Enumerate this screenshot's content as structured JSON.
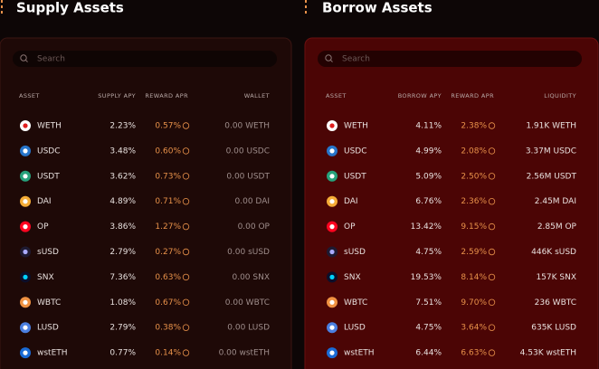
{
  "supply": {
    "title": "Supply Assets",
    "search_placeholder": "Search",
    "columns": [
      "ASSET",
      "SUPPLY APY",
      "REWARD APR",
      "WALLET"
    ],
    "rows": [
      [
        "WETH",
        "2.23%",
        "0.57%",
        "0.00 WETH"
      ],
      [
        "USDC",
        "3.48%",
        "0.60%",
        "0.00 USDC"
      ],
      [
        "USDT",
        "3.62%",
        "0.73%",
        "0.00 USDT"
      ],
      [
        "DAI",
        "4.89%",
        "0.71%",
        "0.00 DAI"
      ],
      [
        "OP",
        "3.86%",
        "1.27%",
        "0.00 OP"
      ],
      [
        "sUSD",
        "2.79%",
        "0.27%",
        "0.00 sUSD"
      ],
      [
        "SNX",
        "7.36%",
        "0.63%",
        "0.00 SNX"
      ],
      [
        "WBTC",
        "1.08%",
        "0.67%",
        "0.00 WBTC"
      ],
      [
        "LUSD",
        "2.79%",
        "0.38%",
        "0.00 LUSD"
      ],
      [
        "wstETH",
        "0.77%",
        "0.14%",
        "0.00 wstETH"
      ]
    ]
  },
  "borrow": {
    "title": "Borrow Assets",
    "search_placeholder": "Search",
    "columns": [
      "ASSET",
      "BORROW APY",
      "REWARD APR",
      "LIQUIDITY"
    ],
    "rows": [
      [
        "WETH",
        "4.11%",
        "2.38%",
        "1.91K WETH"
      ],
      [
        "USDC",
        "4.99%",
        "2.08%",
        "3.37M USDC"
      ],
      [
        "USDT",
        "5.09%",
        "2.50%",
        "2.56M USDT"
      ],
      [
        "DAI",
        "6.76%",
        "2.36%",
        "2.45M DAI"
      ],
      [
        "OP",
        "13.42%",
        "9.15%",
        "2.85M OP"
      ],
      [
        "sUSD",
        "4.75%",
        "2.59%",
        "446K sUSD"
      ],
      [
        "SNX",
        "19.53%",
        "8.14%",
        "157K SNX"
      ],
      [
        "WBTC",
        "7.51%",
        "9.70%",
        "236 WBTC"
      ],
      [
        "LUSD",
        "4.75%",
        "3.64%",
        "635K LUSD"
      ],
      [
        "wstETH",
        "6.44%",
        "6.63%",
        "4.53K wstETH"
      ]
    ]
  }
}
